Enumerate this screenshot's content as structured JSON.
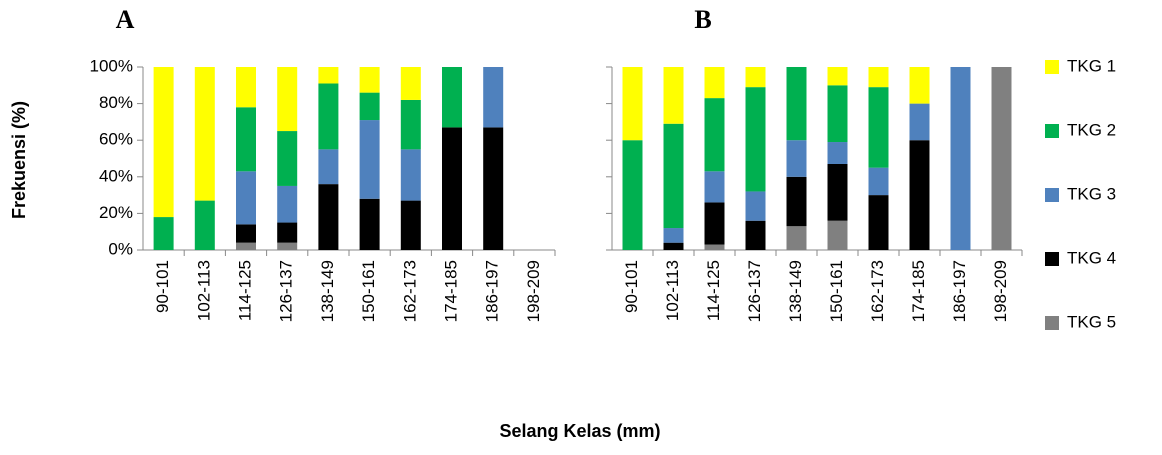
{
  "chart_data": [
    {
      "type": "stacked-bar",
      "title": "A",
      "ylabel": "Frekuensi (%)",
      "xlabel": "Selang Kelas (mm)",
      "categories": [
        "90-101",
        "102-113",
        "114-125",
        "126-137",
        "138-149",
        "150-161",
        "162-173",
        "174-185",
        "186-197",
        "198-209"
      ],
      "series": [
        {
          "name": "TKG 1",
          "color": "#ffff00",
          "values": [
            82,
            73,
            22,
            35,
            9,
            14,
            18,
            0,
            0,
            0
          ]
        },
        {
          "name": "TKG 2",
          "color": "#00b050",
          "values": [
            18,
            27,
            35,
            30,
            36,
            15,
            27,
            33,
            0,
            0
          ]
        },
        {
          "name": "TKG 3",
          "color": "#4f81bd",
          "values": [
            0,
            0,
            29,
            20,
            19,
            43,
            28,
            0,
            33,
            0
          ]
        },
        {
          "name": "TKG 4",
          "color": "#000000",
          "values": [
            0,
            0,
            10,
            11,
            36,
            28,
            27,
            67,
            67,
            0
          ]
        },
        {
          "name": "TKG 5",
          "color": "#808080",
          "values": [
            0,
            0,
            4,
            4,
            0,
            0,
            0,
            0,
            0,
            0
          ]
        }
      ],
      "ylim": [
        0,
        100
      ],
      "yticks": [
        {
          "value": 0,
          "label": "0%"
        },
        {
          "value": 20,
          "label": "20%"
        },
        {
          "value": 40,
          "label": "40%"
        },
        {
          "value": 60,
          "label": "60%"
        },
        {
          "value": 80,
          "label": "80%"
        },
        {
          "value": 100,
          "label": "100%"
        }
      ]
    },
    {
      "type": "stacked-bar",
      "title": "B",
      "categories": [
        "90-101",
        "102-113",
        "114-125",
        "126-137",
        "138-149",
        "150-161",
        "162-173",
        "174-185",
        "186-197",
        "198-209"
      ],
      "series": [
        {
          "name": "TKG 1",
          "color": "#ffff00",
          "values": [
            40,
            31,
            17,
            11,
            0,
            10,
            11,
            20,
            0,
            0
          ]
        },
        {
          "name": "TKG 2",
          "color": "#00b050",
          "values": [
            60,
            57,
            40,
            57,
            40,
            31,
            44,
            0,
            0,
            0
          ]
        },
        {
          "name": "TKG 3",
          "color": "#4f81bd",
          "values": [
            0,
            8,
            17,
            16,
            20,
            12,
            15,
            20,
            100,
            0
          ]
        },
        {
          "name": "TKG 4",
          "color": "#000000",
          "values": [
            0,
            4,
            23,
            16,
            27,
            31,
            30,
            60,
            0,
            0
          ]
        },
        {
          "name": "TKG 5",
          "color": "#808080",
          "values": [
            0,
            0,
            3,
            0,
            13,
            16,
            0,
            0,
            0,
            100
          ]
        }
      ],
      "ylim": [
        0,
        100
      ],
      "yticks": [
        0,
        20,
        40,
        60,
        80,
        100
      ]
    }
  ]
}
